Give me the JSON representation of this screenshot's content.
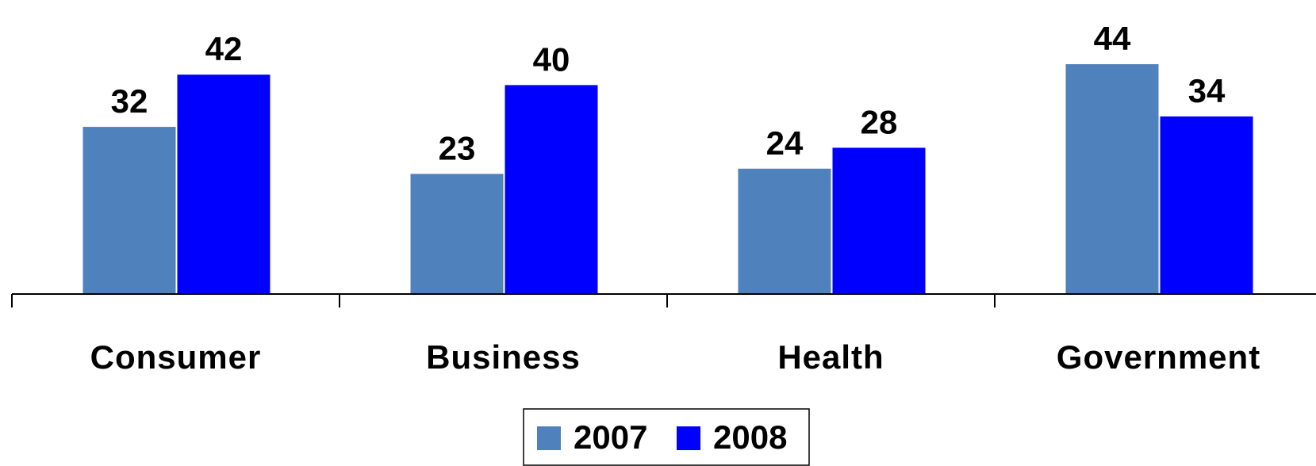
{
  "chart_data": {
    "type": "bar",
    "categories": [
      "Consumer",
      "Business",
      "Health",
      "Government"
    ],
    "series": [
      {
        "name": "2007",
        "color": "#4f81bd",
        "values": [
          32,
          23,
          24,
          44
        ]
      },
      {
        "name": "2008",
        "color": "#0000ff",
        "values": [
          42,
          40,
          28,
          34
        ]
      }
    ],
    "legend": "bottom"
  }
}
